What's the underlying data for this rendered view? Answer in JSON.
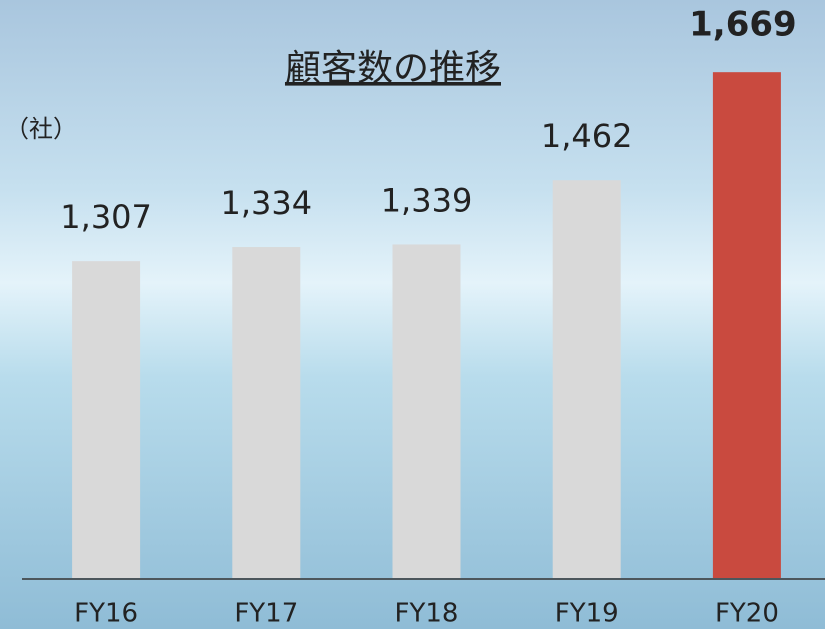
{
  "chart_data": {
    "type": "bar",
    "title": "顧客数の推移",
    "unit_label": "（社）",
    "categories": [
      "FY16",
      "FY17",
      "FY18",
      "FY19",
      "FY20"
    ],
    "values": [
      1307,
      1334,
      1339,
      1462,
      1669
    ],
    "value_labels": [
      "1,307",
      "1,334",
      "1,339",
      "1,462",
      "1,669"
    ],
    "colors": [
      "#d9d9d9",
      "#d9d9d9",
      "#d9d9d9",
      "#d9d9d9",
      "#c94a3f"
    ],
    "highlight_index": 4,
    "ylim": [
      700,
      1700
    ]
  }
}
